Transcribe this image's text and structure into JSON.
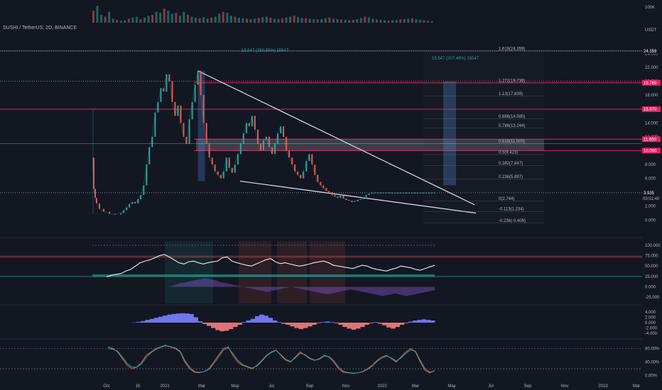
{
  "header": {
    "symbol": "SUSHI / TetherUS, 2D, BINANCE",
    "volume_axis_label": "100K"
  },
  "chart_data": [
    {
      "type": "line",
      "title": "SUSHI / TetherUS, 2D, BINANCE",
      "price_axis": {
        "unit_label": "USDT",
        "ticks": [
          "24.000",
          "22.000",
          "20.000",
          "18.000",
          "16.000",
          "14.000",
          "12.000",
          "10.000",
          "8.000",
          "6.000",
          "4.000",
          "2.000",
          "0.000"
        ],
        "ylim": [
          -1.2,
          26.8
        ]
      },
      "time_axis": {
        "labels": [
          "Oct",
          "16",
          "2021",
          "Mar",
          "May",
          "Jul",
          "Sep",
          "Nov",
          "2022",
          "Mar",
          "May",
          "Jul",
          "Sep",
          "Nov",
          "2023",
          "Mar"
        ]
      },
      "price_series": {
        "name": "",
        "t": [
          0,
          1,
          2,
          3,
          5,
          8,
          12,
          16,
          20,
          22,
          24,
          26,
          28,
          30,
          32,
          34,
          36,
          38,
          40,
          42,
          44,
          46,
          48,
          50,
          52,
          54,
          56,
          58,
          60,
          62,
          64,
          66,
          68,
          70,
          72,
          74,
          76,
          78,
          80,
          82,
          84,
          86,
          88,
          90,
          92,
          94,
          96,
          98,
          100,
          102,
          104,
          106,
          108,
          110,
          112,
          114,
          116,
          118,
          120,
          122,
          124,
          126,
          128,
          130,
          132,
          134,
          136,
          138,
          140,
          142,
          144,
          146,
          148,
          150,
          152,
          154,
          156,
          158,
          160,
          162,
          164,
          166,
          168,
          170,
          172,
          174,
          176,
          178,
          180,
          182,
          184,
          186,
          188,
          190,
          192,
          194,
          196,
          198,
          200,
          202,
          204,
          206,
          208,
          210,
          212,
          214,
          216,
          218,
          220,
          222,
          224,
          226,
          228,
          230,
          232,
          234,
          236,
          238,
          240
        ],
        "y": [
          9.0,
          4.5,
          3.2,
          2.4,
          1.6,
          1.2,
          0.9,
          0.8,
          1.0,
          1.4,
          1.8,
          2.3,
          2.6,
          2.4,
          3.0,
          3.6,
          5.0,
          8.0,
          10.5,
          12.0,
          15.5,
          17.0,
          19.0,
          18.5,
          21.0,
          20.0,
          17.0,
          15.0,
          16.5,
          14.0,
          12.0,
          11.0,
          14.5,
          17.0,
          19.5,
          21.5,
          18.0,
          14.0,
          11.0,
          9.0,
          8.0,
          7.0,
          6.5,
          6.0,
          7.0,
          9.0,
          7.5,
          6.8,
          8.0,
          9.5,
          11.0,
          12.5,
          14.0,
          13.5,
          15.0,
          13.0,
          11.0,
          10.0,
          11.5,
          12.0,
          10.5,
          9.5,
          11.0,
          12.5,
          13.5,
          12.0,
          10.0,
          9.0,
          8.0,
          7.0,
          6.5,
          6.0,
          7.0,
          8.5,
          9.5,
          8.0,
          6.5,
          5.5,
          5.0,
          4.6,
          4.2,
          4.0,
          3.6,
          3.4,
          3.2,
          3.5,
          3.1,
          2.9,
          2.8,
          2.6,
          2.7,
          2.9,
          3.0,
          3.3,
          3.6,
          3.8,
          3.9,
          3.935,
          3.935,
          3.935,
          3.935,
          3.935,
          3.935,
          3.935,
          3.935,
          3.935,
          3.935,
          3.935,
          3.935,
          3.935,
          3.935,
          3.935,
          3.935,
          3.935,
          3.935,
          3.935,
          3.935,
          3.935,
          3.935
        ]
      },
      "volume_series": {
        "name": "",
        "values": [
          60,
          85,
          40,
          30,
          55,
          20,
          15,
          10,
          12,
          20,
          25,
          30,
          18,
          25,
          35,
          40,
          55,
          50,
          70,
          60,
          45,
          50,
          35,
          55,
          40,
          30,
          25,
          22,
          28,
          20,
          26,
          30,
          45,
          55,
          50,
          35,
          30,
          25,
          22,
          20,
          18,
          20,
          24,
          28,
          30,
          25,
          20,
          18,
          22,
          26,
          30,
          35,
          28,
          24,
          22,
          20,
          18,
          16,
          18,
          22,
          26,
          20,
          18,
          16,
          14,
          12,
          14,
          18,
          24,
          30,
          26,
          20,
          16,
          14,
          12,
          10,
          12,
          14,
          16,
          18,
          20,
          22,
          18,
          15,
          12,
          10,
          8
        ]
      },
      "price_labels": [
        {
          "text": "24.359",
          "value": 24.359,
          "color": "#131722"
        },
        {
          "text": "19.769",
          "value": 19.769,
          "color": "#e91e63"
        },
        {
          "text": "15.970",
          "value": 15.97,
          "color": "#e91e63"
        },
        {
          "text": "11.650",
          "value": 11.65,
          "color": "#e91e63"
        },
        {
          "text": "10.000",
          "value": 10.0,
          "color": "#e91e63"
        },
        {
          "text": "3.935",
          "value": 3.935,
          "color": "#131722"
        }
      ],
      "current_price": {
        "value": "3.935",
        "countdown": "03:51:40"
      },
      "fib_levels": [
        {
          "label": "1.618(24.359)",
          "value": 24.359
        },
        {
          "label": "1.272(19.736)",
          "value": 19.736
        },
        {
          "label": "1.13(17.839)",
          "value": 17.839
        },
        {
          "label": "0.886(14.580)",
          "value": 14.58
        },
        {
          "label": "0.786(13.244)",
          "value": 13.244
        },
        {
          "label": "0.618(11.000)",
          "value": 11.0
        },
        {
          "label": "0.5(9.423)",
          "value": 9.423
        },
        {
          "label": "0.382(7.847)",
          "value": 7.847
        },
        {
          "label": "0.236(5.897)",
          "value": 5.897
        },
        {
          "label": "0(2.744)",
          "value": 2.744
        },
        {
          "label": "-0.113(1.234)",
          "value": 1.234
        },
        {
          "label": "-0.236(-0.409)",
          "value": -0.409
        }
      ],
      "measurements": [
        {
          "text": "15.547 (250.55%) 15547"
        },
        {
          "text": "15.547 (207.49%) 15547"
        }
      ],
      "wedge": {
        "upper": [
          {
            "t": 74,
            "y": 21.5
          },
          {
            "t": 222,
            "y": 2.2
          }
        ],
        "lower": [
          {
            "t": 82,
            "y": 5.6
          },
          {
            "t": 222,
            "y": 1.0
          }
        ]
      },
      "dotted_levels": [
        24.359,
        20.0,
        3.935
      ],
      "fib_anchor_level": 2.744
    },
    {
      "type": "line",
      "title": "",
      "ticks": [
        "100.000",
        "75.000",
        "50.000",
        "25.000",
        "0.000",
        "-25.000"
      ],
      "ylim": [
        -40,
        110
      ],
      "series": [
        {
          "name": "",
          "color": "#ffffff",
          "values": [
            24,
            28,
            30,
            32,
            38,
            42,
            50,
            58,
            62,
            65,
            70,
            75,
            78,
            72,
            65,
            58,
            55,
            60,
            62,
            58,
            55,
            58,
            60,
            62,
            70,
            72,
            62,
            58,
            55,
            52,
            50,
            55,
            60,
            65,
            68,
            60,
            56,
            58,
            55,
            52,
            50,
            52,
            55,
            58,
            60,
            62,
            58,
            52,
            50,
            48,
            46,
            44,
            48,
            52,
            50,
            45,
            42,
            40,
            38,
            42,
            45,
            50,
            48,
            46,
            42,
            40,
            44,
            48,
            52
          ]
        },
        {
          "name": "",
          "color": "#7e57c2",
          "values": [
            0,
            0,
            2,
            5,
            8,
            10,
            12,
            14,
            16,
            18,
            20,
            20,
            18,
            16,
            12,
            10,
            8,
            6,
            4,
            2,
            0,
            -2,
            -4,
            -6,
            -8,
            -10,
            -12,
            -10,
            -8,
            -6,
            -4,
            -2,
            0,
            -2,
            -4,
            -6,
            -8,
            -10,
            -12,
            -14,
            -16,
            -18,
            -16,
            -14,
            -12,
            -10,
            -8,
            -6,
            -8,
            -10,
            -12,
            -14,
            -16,
            -18,
            -20,
            -22,
            -20,
            -18,
            -16,
            -18,
            -20,
            -22,
            -20,
            -18,
            -16,
            -14,
            -12,
            -10,
            -8
          ]
        }
      ],
      "overbought": 70,
      "oversold": 30
    },
    {
      "type": "bar",
      "title": "",
      "ticks": [
        "4.000",
        "2.000",
        "0.000",
        "-2.000",
        "-4.000"
      ],
      "ylim": [
        -5,
        5
      ],
      "values": [
        0.1,
        0.3,
        0.6,
        1.0,
        1.4,
        1.8,
        2.2,
        2.6,
        3.0,
        3.2,
        3.4,
        3.5,
        3.4,
        3.2,
        2.0,
        0.5,
        -0.5,
        -1.2,
        -2.0,
        -2.8,
        -3.2,
        -3.0,
        -2.4,
        -1.6,
        -0.8,
        0.2,
        0.8,
        1.4,
        2.4,
        3.0,
        2.6,
        1.8,
        0.8,
        0.2,
        -0.4,
        -0.8,
        -1.4,
        -2.0,
        -2.4,
        -2.0,
        -1.4,
        -0.8,
        -0.2,
        0.2,
        0.4,
        0.2,
        -0.2,
        -0.8,
        -1.6,
        -2.2,
        -2.6,
        -2.2,
        -1.6,
        -0.8,
        -0.2,
        0.2,
        -0.4,
        -1.0,
        -1.8,
        -2.2,
        -1.6,
        -0.8,
        -0.2,
        0.4,
        0.8,
        1.0,
        1.2,
        1.0,
        0.8
      ]
    },
    {
      "type": "line",
      "title": "",
      "ticks": [
        "80.00%",
        "40.00%",
        "0.00%"
      ],
      "ylim": [
        -5,
        100
      ],
      "series": [
        {
          "name": "",
          "color": "#ef5350",
          "values": [
            85,
            80,
            70,
            50,
            30,
            20,
            25,
            40,
            60,
            70,
            80,
            85,
            90,
            85,
            80,
            70,
            40,
            20,
            10,
            8,
            12,
            20,
            40,
            60,
            80,
            85,
            60,
            40,
            30,
            25,
            20,
            30,
            45,
            60,
            70,
            75,
            60,
            45,
            40,
            55,
            70,
            60,
            50,
            45,
            50,
            60,
            55,
            40,
            20,
            10,
            8,
            6,
            8,
            12,
            20,
            30,
            45,
            55,
            60,
            50,
            40,
            55,
            70,
            80,
            70,
            40,
            15,
            8,
            15
          ]
        },
        {
          "name": "",
          "color": "#26a69a",
          "values": [
            80,
            78,
            72,
            55,
            35,
            25,
            25,
            35,
            55,
            68,
            78,
            84,
            88,
            86,
            82,
            72,
            45,
            25,
            12,
            9,
            12,
            18,
            35,
            55,
            75,
            82,
            65,
            45,
            33,
            27,
            22,
            28,
            42,
            58,
            68,
            74,
            62,
            48,
            42,
            52,
            66,
            62,
            52,
            46,
            48,
            58,
            56,
            44,
            25,
            12,
            9,
            7,
            8,
            11,
            18,
            28,
            42,
            52,
            58,
            52,
            43,
            52,
            66,
            76,
            72,
            45,
            20,
            10,
            14
          ]
        }
      ],
      "levels": [
        80,
        20
      ]
    }
  ]
}
